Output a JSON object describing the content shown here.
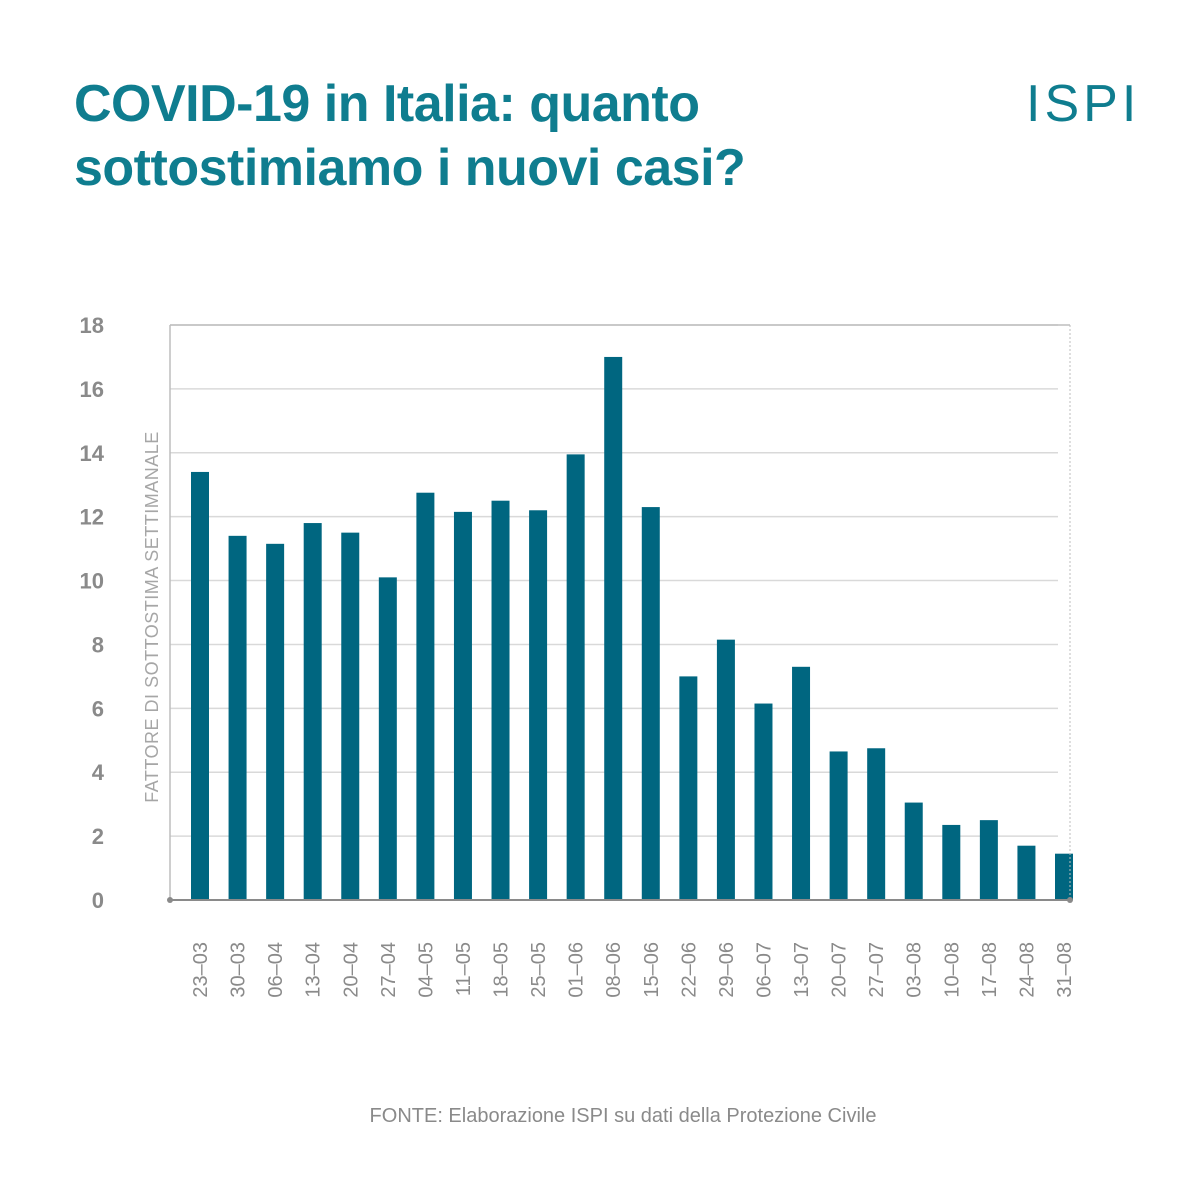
{
  "header": {
    "title_line1": "COVID-19 in Italia: quanto",
    "title_line2": "sottostimiamo i nuovi casi?",
    "logo_text": "ISPI"
  },
  "footer": {
    "source": "FONTE: Elaborazione ISPI su dati della Protezione Civile"
  },
  "colors": {
    "brand": "#0f7d8f",
    "bar": "#006680",
    "grid": "#d9d9d9",
    "axis_text": "#8a8a8a"
  },
  "chart_data": {
    "type": "bar",
    "title": "",
    "xlabel": "",
    "ylabel": "FATTORE DI SOTTOSTIMA SETTIMANALE",
    "ylim": [
      0,
      18
    ],
    "yticks": [
      0,
      2,
      4,
      6,
      8,
      10,
      12,
      14,
      16,
      18
    ],
    "grid": true,
    "categories": [
      "23–03",
      "30–03",
      "06–04",
      "13–04",
      "20–04",
      "27–04",
      "04–05",
      "11–05",
      "18–05",
      "25–05",
      "01–06",
      "08–06",
      "15–06",
      "22–06",
      "29–06",
      "06–07",
      "13–07",
      "20–07",
      "27–07",
      "03–08",
      "10–08",
      "17–08",
      "24–08",
      "31–08"
    ],
    "values": [
      13.4,
      11.4,
      11.15,
      11.8,
      11.5,
      10.1,
      12.75,
      12.15,
      12.5,
      12.2,
      13.95,
      17.0,
      12.3,
      7.0,
      8.15,
      6.15,
      7.3,
      4.65,
      4.75,
      3.05,
      2.35,
      2.5,
      1.7,
      1.45
    ]
  }
}
